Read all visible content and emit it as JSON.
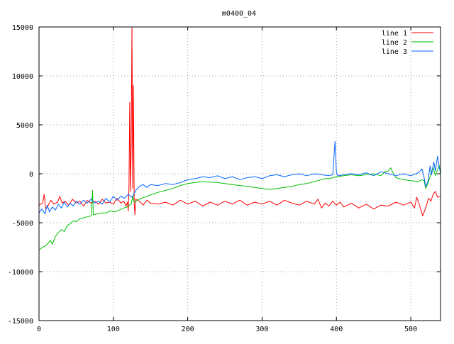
{
  "chart_data": {
    "type": "line",
    "title": "m0400_04",
    "xlabel": "",
    "ylabel": "",
    "xlim": [
      0,
      540
    ],
    "ylim": [
      -15000,
      15000
    ],
    "x_ticks": [
      0,
      100,
      200,
      300,
      400,
      500
    ],
    "y_ticks": [
      15000,
      10000,
      5000,
      0,
      -5000,
      -10000,
      -15000
    ],
    "grid": true,
    "legend_position": "top-right",
    "series": [
      {
        "name": "line 1",
        "color": "#ff0000",
        "points": [
          [
            0,
            -3200
          ],
          [
            5,
            -3000
          ],
          [
            7,
            -2100
          ],
          [
            9,
            -3600
          ],
          [
            12,
            -3300
          ],
          [
            16,
            -2700
          ],
          [
            20,
            -3100
          ],
          [
            25,
            -2900
          ],
          [
            28,
            -2300
          ],
          [
            31,
            -3000
          ],
          [
            35,
            -2800
          ],
          [
            40,
            -3200
          ],
          [
            45,
            -2600
          ],
          [
            50,
            -3000
          ],
          [
            55,
            -2800
          ],
          [
            60,
            -3300
          ],
          [
            65,
            -2700
          ],
          [
            70,
            -3000
          ],
          [
            75,
            -2800
          ],
          [
            80,
            -3100
          ],
          [
            85,
            -2600
          ],
          [
            90,
            -3000
          ],
          [
            95,
            -2900
          ],
          [
            100,
            -3100
          ],
          [
            105,
            -2500
          ],
          [
            110,
            -3000
          ],
          [
            114,
            -2800
          ],
          [
            117,
            -3300
          ],
          [
            119,
            -2900
          ],
          [
            120,
            -3800
          ],
          [
            121,
            -1500
          ],
          [
            122,
            7300
          ],
          [
            123,
            -1800
          ],
          [
            124,
            3000
          ],
          [
            125,
            15000
          ],
          [
            126,
            -1500
          ],
          [
            127,
            9000
          ],
          [
            128,
            -3000
          ],
          [
            129,
            -4200
          ],
          [
            130,
            -2600
          ],
          [
            135,
            -2800
          ],
          [
            140,
            -3200
          ],
          [
            145,
            -2700
          ],
          [
            150,
            -3000
          ],
          [
            160,
            -3100
          ],
          [
            170,
            -2900
          ],
          [
            180,
            -3200
          ],
          [
            190,
            -2700
          ],
          [
            200,
            -3100
          ],
          [
            210,
            -2800
          ],
          [
            220,
            -3300
          ],
          [
            230,
            -2900
          ],
          [
            240,
            -3200
          ],
          [
            250,
            -2800
          ],
          [
            260,
            -3100
          ],
          [
            270,
            -2700
          ],
          [
            280,
            -3200
          ],
          [
            290,
            -2900
          ],
          [
            300,
            -3100
          ],
          [
            310,
            -2800
          ],
          [
            320,
            -3200
          ],
          [
            330,
            -2700
          ],
          [
            340,
            -3000
          ],
          [
            350,
            -3200
          ],
          [
            360,
            -2800
          ],
          [
            370,
            -3100
          ],
          [
            375,
            -2600
          ],
          [
            380,
            -3500
          ],
          [
            385,
            -3000
          ],
          [
            390,
            -3300
          ],
          [
            395,
            -2800
          ],
          [
            400,
            -3200
          ],
          [
            405,
            -2900
          ],
          [
            410,
            -3400
          ],
          [
            420,
            -3000
          ],
          [
            430,
            -3500
          ],
          [
            440,
            -3100
          ],
          [
            450,
            -3600
          ],
          [
            460,
            -3200
          ],
          [
            470,
            -3300
          ],
          [
            480,
            -2900
          ],
          [
            490,
            -3200
          ],
          [
            500,
            -2900
          ],
          [
            505,
            -3500
          ],
          [
            508,
            -2400
          ],
          [
            512,
            -3300
          ],
          [
            516,
            -4300
          ],
          [
            520,
            -3500
          ],
          [
            524,
            -2500
          ],
          [
            527,
            -2800
          ],
          [
            530,
            -2100
          ],
          [
            533,
            -1800
          ],
          [
            536,
            -2400
          ],
          [
            540,
            -2300
          ]
        ]
      },
      {
        "name": "line 2",
        "color": "#00c000",
        "points": [
          [
            0,
            -7800
          ],
          [
            5,
            -7500
          ],
          [
            10,
            -7300
          ],
          [
            15,
            -6800
          ],
          [
            18,
            -7200
          ],
          [
            22,
            -6400
          ],
          [
            26,
            -6000
          ],
          [
            30,
            -5700
          ],
          [
            34,
            -5900
          ],
          [
            38,
            -5300
          ],
          [
            42,
            -5100
          ],
          [
            46,
            -4800
          ],
          [
            50,
            -4900
          ],
          [
            55,
            -4600
          ],
          [
            60,
            -4500
          ],
          [
            65,
            -4400
          ],
          [
            70,
            -4300
          ],
          [
            72,
            -1700
          ],
          [
            73,
            -4200
          ],
          [
            78,
            -4100
          ],
          [
            84,
            -4000
          ],
          [
            90,
            -4000
          ],
          [
            96,
            -3800
          ],
          [
            102,
            -3900
          ],
          [
            108,
            -3700
          ],
          [
            114,
            -3500
          ],
          [
            118,
            -3400
          ],
          [
            120,
            -3300
          ],
          [
            124,
            -3100
          ],
          [
            126,
            -2300
          ],
          [
            128,
            -2900
          ],
          [
            132,
            -2700
          ],
          [
            138,
            -2500
          ],
          [
            145,
            -2300
          ],
          [
            152,
            -2100
          ],
          [
            160,
            -1900
          ],
          [
            170,
            -1700
          ],
          [
            180,
            -1500
          ],
          [
            190,
            -1200
          ],
          [
            200,
            -1000
          ],
          [
            210,
            -900
          ],
          [
            220,
            -800
          ],
          [
            230,
            -850
          ],
          [
            240,
            -900
          ],
          [
            250,
            -1000
          ],
          [
            260,
            -1100
          ],
          [
            270,
            -1200
          ],
          [
            280,
            -1300
          ],
          [
            290,
            -1400
          ],
          [
            300,
            -1500
          ],
          [
            310,
            -1600
          ],
          [
            320,
            -1500
          ],
          [
            330,
            -1400
          ],
          [
            340,
            -1300
          ],
          [
            350,
            -1100
          ],
          [
            360,
            -1000
          ],
          [
            370,
            -800
          ],
          [
            375,
            -700
          ],
          [
            380,
            -600
          ],
          [
            385,
            -500
          ],
          [
            390,
            -500
          ],
          [
            395,
            -400
          ],
          [
            400,
            -300
          ],
          [
            410,
            -200
          ],
          [
            420,
            -100
          ],
          [
            430,
            -200
          ],
          [
            440,
            -100
          ],
          [
            450,
            0
          ],
          [
            460,
            -200
          ],
          [
            465,
            200
          ],
          [
            470,
            300
          ],
          [
            473,
            600
          ],
          [
            476,
            100
          ],
          [
            480,
            -400
          ],
          [
            490,
            -600
          ],
          [
            500,
            -700
          ],
          [
            510,
            -800
          ],
          [
            515,
            -600
          ],
          [
            518,
            -700
          ],
          [
            520,
            -1500
          ],
          [
            523,
            -1000
          ],
          [
            526,
            -300
          ],
          [
            530,
            700
          ],
          [
            533,
            -200
          ],
          [
            536,
            400
          ],
          [
            538,
            900
          ],
          [
            540,
            0
          ]
        ]
      },
      {
        "name": "line 3",
        "color": "#0066ff",
        "points": [
          [
            0,
            -4000
          ],
          [
            4,
            -3600
          ],
          [
            8,
            -4100
          ],
          [
            11,
            -3200
          ],
          [
            14,
            -3900
          ],
          [
            18,
            -3400
          ],
          [
            22,
            -3700
          ],
          [
            26,
            -3100
          ],
          [
            30,
            -3500
          ],
          [
            34,
            -2900
          ],
          [
            38,
            -3400
          ],
          [
            42,
            -3000
          ],
          [
            46,
            -3300
          ],
          [
            50,
            -2800
          ],
          [
            55,
            -3100
          ],
          [
            60,
            -2700
          ],
          [
            65,
            -3000
          ],
          [
            70,
            -2600
          ],
          [
            75,
            -3000
          ],
          [
            80,
            -2800
          ],
          [
            85,
            -3100
          ],
          [
            90,
            -2500
          ],
          [
            95,
            -2900
          ],
          [
            100,
            -2300
          ],
          [
            105,
            -2700
          ],
          [
            110,
            -2300
          ],
          [
            115,
            -2500
          ],
          [
            120,
            -2100
          ],
          [
            125,
            -2400
          ],
          [
            128,
            -2000
          ],
          [
            130,
            -1700
          ],
          [
            135,
            -1300
          ],
          [
            140,
            -1100
          ],
          [
            145,
            -1400
          ],
          [
            150,
            -1100
          ],
          [
            160,
            -1200
          ],
          [
            170,
            -1000
          ],
          [
            180,
            -1100
          ],
          [
            190,
            -900
          ],
          [
            200,
            -600
          ],
          [
            210,
            -500
          ],
          [
            220,
            -300
          ],
          [
            230,
            -400
          ],
          [
            240,
            -200
          ],
          [
            250,
            -500
          ],
          [
            260,
            -300
          ],
          [
            270,
            -600
          ],
          [
            280,
            -400
          ],
          [
            290,
            -300
          ],
          [
            300,
            -500
          ],
          [
            310,
            -200
          ],
          [
            320,
            -100
          ],
          [
            330,
            -300
          ],
          [
            340,
            -100
          ],
          [
            350,
            0
          ],
          [
            360,
            -200
          ],
          [
            370,
            0
          ],
          [
            380,
            -100
          ],
          [
            390,
            -200
          ],
          [
            395,
            -100
          ],
          [
            398,
            3300
          ],
          [
            400,
            100
          ],
          [
            402,
            -200
          ],
          [
            410,
            -100
          ],
          [
            420,
            0
          ],
          [
            430,
            -100
          ],
          [
            440,
            100
          ],
          [
            450,
            -200
          ],
          [
            460,
            200
          ],
          [
            470,
            0
          ],
          [
            480,
            -200
          ],
          [
            490,
            0
          ],
          [
            500,
            -200
          ],
          [
            510,
            100
          ],
          [
            515,
            500
          ],
          [
            518,
            -400
          ],
          [
            520,
            -1300
          ],
          [
            523,
            -800
          ],
          [
            526,
            800
          ],
          [
            528,
            -100
          ],
          [
            531,
            1200
          ],
          [
            533,
            300
          ],
          [
            536,
            1800
          ],
          [
            538,
            700
          ],
          [
            540,
            200
          ]
        ]
      }
    ]
  }
}
